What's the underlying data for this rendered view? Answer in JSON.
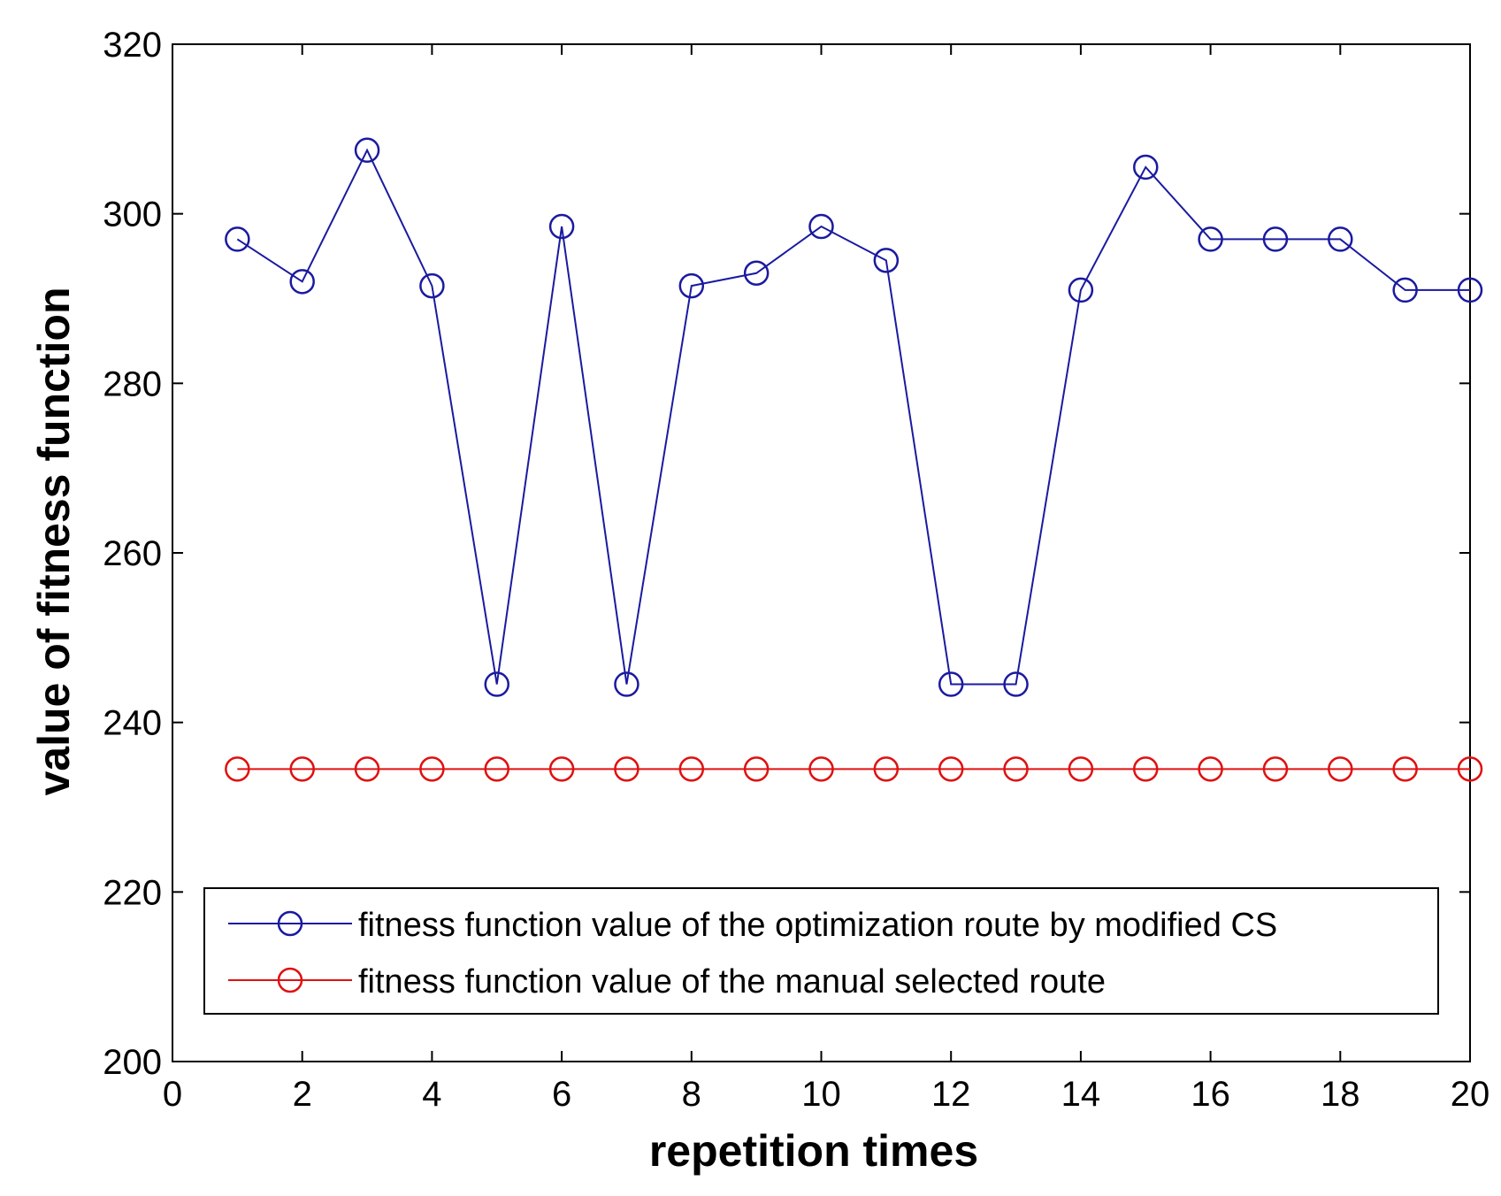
{
  "chart_data": {
    "type": "line",
    "title": "",
    "xlabel": "repetition times",
    "ylabel": "value of fitness function",
    "xlim": [
      0,
      20
    ],
    "ylim": [
      200,
      320
    ],
    "xticks": [
      0,
      2,
      4,
      6,
      8,
      10,
      12,
      14,
      16,
      18,
      20
    ],
    "yticks": [
      200,
      220,
      240,
      260,
      280,
      300,
      320
    ],
    "xtick_labels": [
      "0",
      "2",
      "4",
      "6",
      "8",
      "10",
      "12",
      "14",
      "16",
      "18",
      "20"
    ],
    "ytick_labels": [
      "200",
      "220",
      "240",
      "260",
      "280",
      "300",
      "320"
    ],
    "grid": false,
    "legend_position": "bottom",
    "x": [
      1,
      2,
      3,
      4,
      5,
      6,
      7,
      8,
      9,
      10,
      11,
      12,
      13,
      14,
      15,
      16,
      17,
      18,
      19,
      20
    ],
    "series": [
      {
        "name": "fitness function value of the optimization route by modified CS",
        "color": "#1a1aa0",
        "marker": "circle",
        "values": [
          297,
          292,
          307.5,
          291.5,
          244.5,
          298.5,
          244.5,
          291.5,
          293,
          298.5,
          294.5,
          244.5,
          244.5,
          291,
          305.5,
          297,
          297,
          297,
          291,
          291
        ]
      },
      {
        "name": "fitness function value of the manual selected route",
        "color": "#e01010",
        "marker": "circle",
        "values": [
          234.5,
          234.5,
          234.5,
          234.5,
          234.5,
          234.5,
          234.5,
          234.5,
          234.5,
          234.5,
          234.5,
          234.5,
          234.5,
          234.5,
          234.5,
          234.5,
          234.5,
          234.5,
          234.5,
          234.5
        ]
      }
    ]
  }
}
